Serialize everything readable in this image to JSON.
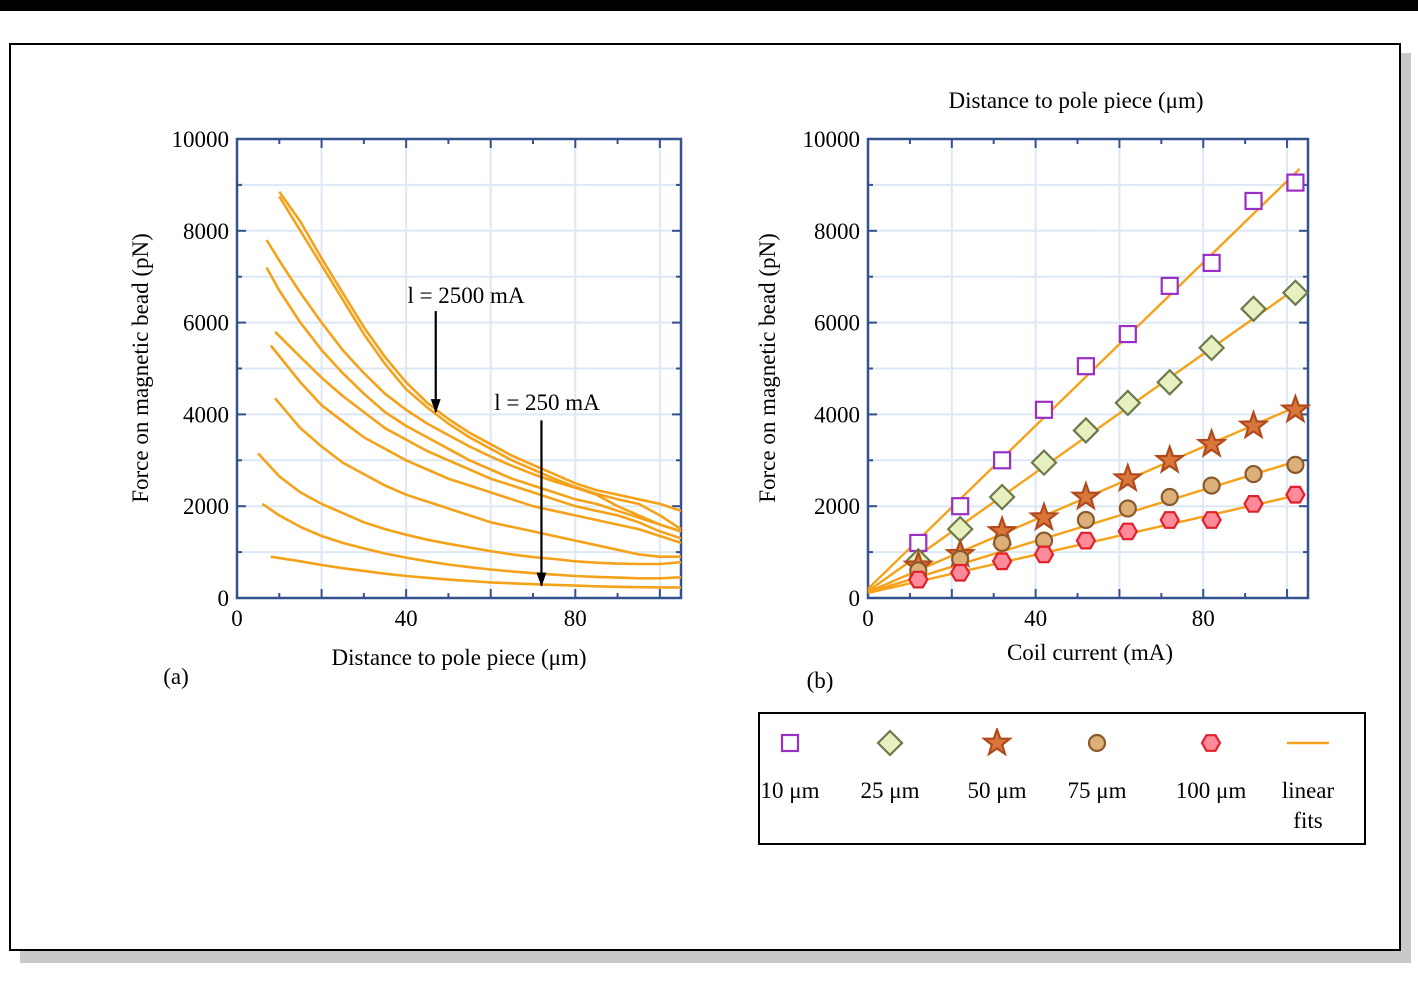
{
  "colors": {
    "curve": "#f5a21b",
    "grid": "#dde8f6",
    "axis": "#34528e"
  },
  "chart_data": [
    {
      "type": "line",
      "panel_label": "(a)",
      "xlabel": "Distance to pole piece (μm)",
      "ylabel": "Force on magnetic bead (pN)",
      "xlim": [
        0,
        105
      ],
      "ylim": [
        0,
        10000
      ],
      "xticks": [
        0,
        40,
        80
      ],
      "yticks": [
        0,
        2000,
        4000,
        6000,
        8000,
        10000
      ],
      "grid": true,
      "annotations": [
        {
          "text": "l = 2500 mA",
          "arrow_x": 47,
          "arrow_from": 6250,
          "arrow_to": 4050
        },
        {
          "text": "l = 250 mA",
          "arrow_x": 72,
          "arrow_from": 3870,
          "arrow_to": 270
        }
      ],
      "series": [
        {
          "x": [
            10,
            15,
            20,
            25,
            30,
            35,
            40,
            45,
            50,
            55,
            60,
            65,
            70,
            75,
            80,
            85,
            90,
            95,
            100,
            105
          ],
          "y": [
            8850,
            8200,
            7400,
            6650,
            5900,
            5250,
            4700,
            4250,
            3900,
            3600,
            3350,
            3100,
            2900,
            2700,
            2500,
            2350,
            2250,
            2150,
            2050,
            1900
          ]
        },
        {
          "x": [
            10,
            15,
            20,
            25,
            30,
            35,
            40,
            45,
            50,
            55,
            60,
            65,
            70,
            75,
            80,
            85,
            90,
            95,
            100,
            105
          ],
          "y": [
            8750,
            8000,
            7250,
            6500,
            5750,
            5100,
            4550,
            4150,
            3800,
            3500,
            3250,
            3000,
            2800,
            2600,
            2420,
            2270,
            2150,
            2050,
            1800,
            1500
          ]
        },
        {
          "x": [
            7,
            10,
            15,
            20,
            25,
            30,
            35,
            40,
            45,
            50,
            55,
            60,
            65,
            70,
            75,
            80,
            85,
            90,
            95,
            100,
            105
          ],
          "y": [
            7800,
            7350,
            6650,
            6000,
            5400,
            4900,
            4450,
            4100,
            3800,
            3550,
            3300,
            3080,
            2880,
            2700,
            2540,
            2400,
            2250,
            2000,
            1800,
            1600,
            1450
          ]
        },
        {
          "x": [
            7,
            10,
            15,
            20,
            25,
            30,
            35,
            40,
            45,
            50,
            55,
            60,
            65,
            70,
            75,
            80,
            85,
            90,
            95,
            100,
            105
          ],
          "y": [
            7200,
            6700,
            6000,
            5400,
            4900,
            4450,
            4050,
            3750,
            3500,
            3250,
            3000,
            2800,
            2600,
            2450,
            2300,
            2150,
            2050,
            1900,
            1750,
            1600,
            1450
          ]
        },
        {
          "x": [
            9,
            15,
            20,
            25,
            30,
            35,
            40,
            45,
            50,
            55,
            60,
            65,
            70,
            75,
            80,
            85,
            90,
            95,
            100,
            105
          ],
          "y": [
            5800,
            5250,
            4800,
            4400,
            4050,
            3700,
            3450,
            3200,
            3000,
            2800,
            2600,
            2450,
            2300,
            2150,
            2000,
            1900,
            1800,
            1650,
            1450,
            1300
          ]
        },
        {
          "x": [
            8,
            15,
            20,
            25,
            30,
            35,
            40,
            45,
            50,
            55,
            60,
            65,
            70,
            75,
            80,
            85,
            90,
            95,
            100,
            105
          ],
          "y": [
            5500,
            4700,
            4200,
            3850,
            3500,
            3250,
            3000,
            2800,
            2600,
            2450,
            2300,
            2150,
            2000,
            1900,
            1800,
            1700,
            1600,
            1500,
            1350,
            1200
          ]
        },
        {
          "x": [
            9,
            15,
            20,
            25,
            30,
            35,
            40,
            45,
            50,
            55,
            60,
            65,
            70,
            75,
            80,
            85,
            90,
            95,
            100,
            105
          ],
          "y": [
            4350,
            3700,
            3300,
            2950,
            2700,
            2450,
            2250,
            2100,
            1950,
            1800,
            1650,
            1550,
            1450,
            1350,
            1250,
            1150,
            1050,
            950,
            900,
            900
          ]
        },
        {
          "x": [
            5,
            10,
            15,
            20,
            25,
            30,
            35,
            40,
            45,
            50,
            55,
            60,
            65,
            70,
            75,
            80,
            85,
            90,
            95,
            100,
            105
          ],
          "y": [
            3150,
            2650,
            2300,
            2050,
            1850,
            1650,
            1500,
            1380,
            1270,
            1180,
            1100,
            1020,
            950,
            890,
            850,
            800,
            770,
            750,
            740,
            740,
            780
          ]
        },
        {
          "x": [
            6,
            10,
            15,
            20,
            25,
            30,
            35,
            40,
            45,
            50,
            55,
            60,
            65,
            70,
            75,
            80,
            85,
            90,
            95,
            100,
            105
          ],
          "y": [
            2050,
            1800,
            1550,
            1350,
            1200,
            1080,
            970,
            880,
            800,
            730,
            670,
            620,
            580,
            540,
            510,
            480,
            460,
            445,
            430,
            430,
            450
          ]
        },
        {
          "x": [
            8,
            15,
            20,
            25,
            30,
            35,
            40,
            45,
            50,
            55,
            60,
            65,
            70,
            75,
            80,
            85,
            90,
            95,
            100,
            105
          ],
          "y": [
            900,
            800,
            720,
            650,
            590,
            530,
            480,
            440,
            400,
            370,
            340,
            320,
            300,
            285,
            270,
            255,
            245,
            235,
            230,
            230
          ]
        }
      ]
    },
    {
      "type": "scatter",
      "panel_label": "(b)",
      "title": "Distance to pole piece (μm)",
      "xlabel": "Coil current (mA)",
      "ylabel": "Force on magnetic bead (pN)",
      "xlim": [
        0,
        105
      ],
      "ylim": [
        0,
        10000
      ],
      "xticks": [
        0,
        40,
        80
      ],
      "yticks": [
        0,
        2000,
        4000,
        6000,
        8000,
        10000
      ],
      "grid": true,
      "fit_x": [
        0,
        103
      ],
      "series": [
        {
          "name": "10 μm",
          "marker": "square",
          "color": "#9a2fc5",
          "fill": "#ffffff",
          "x": [
            12,
            22,
            32,
            42,
            52,
            62,
            72,
            82,
            92,
            102
          ],
          "y": [
            1200,
            2000,
            3000,
            4100,
            5050,
            5750,
            6800,
            7300,
            8650,
            9050
          ],
          "fit": [
            200,
            9350
          ]
        },
        {
          "name": "25 μm",
          "marker": "diamond",
          "color": "#6b7a4b",
          "fill": "#e8f0c0",
          "x": [
            12,
            22,
            32,
            42,
            52,
            62,
            72,
            82,
            92,
            102
          ],
          "y": [
            800,
            1500,
            2200,
            2950,
            3650,
            4250,
            4700,
            5450,
            6300,
            6650
          ],
          "fit": [
            150,
            6800
          ]
        },
        {
          "name": "50 μm",
          "marker": "star",
          "color": "#b04a1c",
          "fill": "#d9773a",
          "x": [
            12,
            22,
            32,
            42,
            52,
            62,
            72,
            82,
            92,
            102
          ],
          "y": [
            700,
            950,
            1450,
            1750,
            2200,
            2600,
            3000,
            3350,
            3750,
            4100
          ],
          "fit": [
            130,
            4200
          ]
        },
        {
          "name": "75 μm",
          "marker": "circle",
          "color": "#8a5a2c",
          "fill": "#ddb07a",
          "x": [
            12,
            22,
            32,
            42,
            52,
            62,
            72,
            82,
            92,
            102
          ],
          "y": [
            600,
            850,
            1200,
            1250,
            1700,
            1950,
            2200,
            2450,
            2700,
            2900
          ],
          "fit": [
            120,
            3000
          ]
        },
        {
          "name": "100 μm",
          "marker": "hexagon",
          "color": "#e0202a",
          "fill": "#ff8a9a",
          "x": [
            12,
            22,
            32,
            42,
            52,
            62,
            72,
            82,
            92,
            102
          ],
          "y": [
            400,
            550,
            800,
            950,
            1250,
            1450,
            1700,
            1700,
            2050,
            2250
          ],
          "fit": [
            110,
            2250
          ]
        }
      ],
      "legend": {
        "position": "below",
        "items": [
          "10 μm",
          "25 μm",
          "50 μm",
          "75 μm",
          "100 μm"
        ],
        "fit_label_line1": "linear",
        "fit_label_line2": "fits"
      }
    }
  ]
}
